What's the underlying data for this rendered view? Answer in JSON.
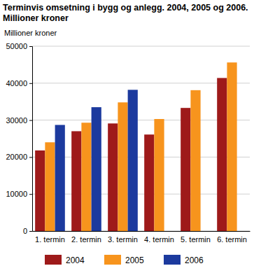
{
  "chart_data": {
    "type": "bar",
    "title": "Terminvis omsetning i bygg og anlegg. 2004, 2005 og 2006. Millioner kroner",
    "y_label": "Millioner kroner",
    "categories": [
      "1. termin",
      "2. termin",
      "3. termin",
      "4. termin",
      "5. termin",
      "6. termin"
    ],
    "series": [
      {
        "name": "2004",
        "color": "#9e1a1a",
        "values": [
          21800,
          27000,
          29100,
          26100,
          33300,
          41400
        ]
      },
      {
        "name": "2005",
        "color": "#f7941d",
        "values": [
          24000,
          29300,
          34800,
          30300,
          38100,
          45600
        ]
      },
      {
        "name": "2006",
        "color": "#1c3a9e",
        "values": [
          28700,
          33500,
          38200,
          null,
          null,
          null
        ]
      }
    ],
    "ylim": [
      0,
      50000
    ],
    "yticks": [
      0,
      10000,
      20000,
      30000,
      40000,
      50000
    ],
    "grid": true,
    "legend": "bottom"
  }
}
